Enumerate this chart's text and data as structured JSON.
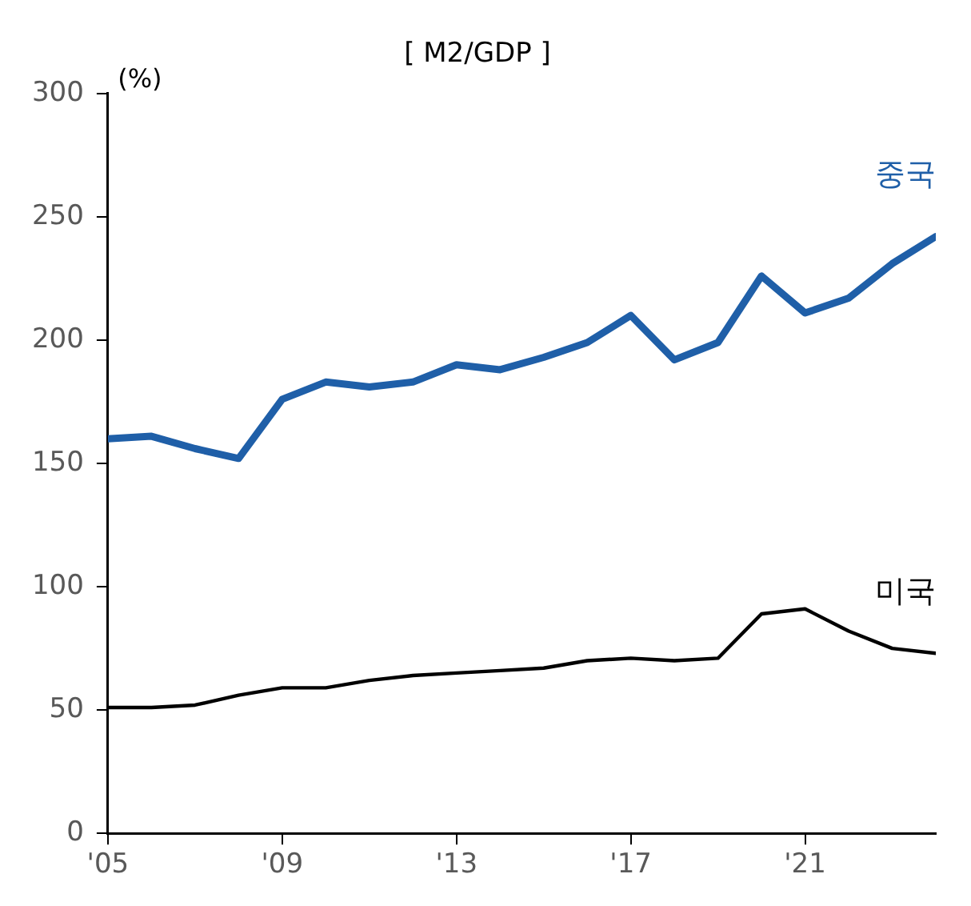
{
  "chart_data": {
    "type": "line",
    "title": "[ M2/GDP ]",
    "ylabel": "(%)",
    "x": [
      2005,
      2006,
      2007,
      2008,
      2009,
      2010,
      2011,
      2012,
      2013,
      2014,
      2015,
      2016,
      2017,
      2018,
      2019,
      2020,
      2021,
      2022,
      2023,
      2024
    ],
    "series": [
      {
        "name": "중국",
        "color": "#1f5fa8",
        "values": [
          160,
          161,
          156,
          152,
          176,
          183,
          181,
          183,
          190,
          188,
          193,
          199,
          210,
          192,
          199,
          226,
          211,
          217,
          231,
          242
        ]
      },
      {
        "name": "미국",
        "color": "#000000",
        "values": [
          51,
          51,
          52,
          56,
          59,
          59,
          62,
          64,
          65,
          66,
          67,
          70,
          71,
          70,
          71,
          89,
          91,
          82,
          75,
          73
        ]
      }
    ],
    "xlim": [
      2005,
      2024
    ],
    "xticks": [
      {
        "value": 2005,
        "label": "'05"
      },
      {
        "value": 2009,
        "label": "'09"
      },
      {
        "value": 2013,
        "label": "'13"
      },
      {
        "value": 2017,
        "label": "'17"
      },
      {
        "value": 2021,
        "label": "'21"
      }
    ],
    "ylim": [
      0,
      300
    ],
    "yticks": [
      0,
      50,
      100,
      150,
      200,
      250,
      300
    ],
    "grid": false,
    "legend": false,
    "marker": "none",
    "line_style": "solid"
  }
}
